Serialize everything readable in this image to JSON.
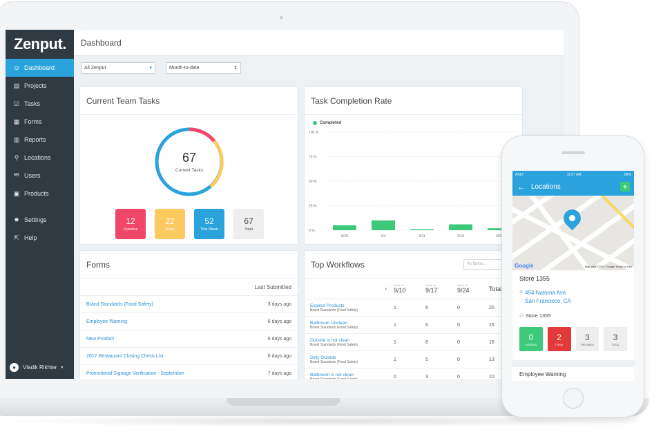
{
  "app": {
    "logo": "Zenput.",
    "page_title": "Dashboard"
  },
  "sidebar": {
    "items": [
      {
        "label": "Dashboard",
        "icon": "dashboard-icon",
        "glyph": "⊙"
      },
      {
        "label": "Projects",
        "icon": "projects-icon",
        "glyph": "▤"
      },
      {
        "label": "Tasks",
        "icon": "tasks-icon",
        "glyph": "☑"
      },
      {
        "label": "Forms",
        "icon": "forms-icon",
        "glyph": "▦"
      },
      {
        "label": "Reports",
        "icon": "reports-icon",
        "glyph": "▥"
      },
      {
        "label": "Locations",
        "icon": "locations-icon",
        "glyph": "⚲"
      },
      {
        "label": "Users",
        "icon": "users-icon",
        "glyph": "ᴿᴿ"
      },
      {
        "label": "Products",
        "icon": "products-icon",
        "glyph": "▣"
      },
      {
        "label": "Settings",
        "icon": "gear-icon",
        "glyph": "✹"
      },
      {
        "label": "Help",
        "icon": "help-icon",
        "glyph": "⇱"
      }
    ],
    "user": {
      "name": "Vladik Rikhter"
    }
  },
  "filters": {
    "scope": "All Zenput",
    "period": "Month-to-date"
  },
  "team_tasks": {
    "title": "Current Team Tasks",
    "total": "67",
    "caption": "Current Tasks",
    "tiles": [
      {
        "value": "12",
        "label": "Overdue",
        "color": "#f0466a"
      },
      {
        "value": "22",
        "label": "Today",
        "color": "#fcca5f"
      },
      {
        "value": "52",
        "label": "This Week",
        "color": "#2aa3dd"
      },
      {
        "value": "67",
        "label": "Total",
        "color": "#eeeeee"
      }
    ]
  },
  "completion": {
    "title": "Task Completion Rate",
    "chart_data": {
      "type": "bar",
      "series": [
        {
          "name": "Completed",
          "values": [
            5,
            10,
            1,
            6,
            2
          ]
        }
      ],
      "categories": [
        "8/28",
        "9/4",
        "9/11",
        "9/18",
        "9/25"
      ],
      "yticks": [
        "100 %",
        "75 %",
        "50 %",
        "25 %",
        "0 %"
      ],
      "ylim": [
        0,
        100
      ],
      "color": "#3dc97a"
    }
  },
  "forms": {
    "title": "Forms",
    "col_header": "Last Submitted",
    "rows": [
      {
        "name": "Brand Standards (Food Safety)",
        "date": "3 days ago"
      },
      {
        "name": "Employee Warning",
        "date": "6 days ago"
      },
      {
        "name": "New Product",
        "date": "6 days ago"
      },
      {
        "name": "2017 Restaurant Closing Check List",
        "date": "6 days ago"
      },
      {
        "name": "Promotional Signage Verification - September",
        "date": "7 days ago"
      }
    ]
  },
  "workflows": {
    "title": "Top Workflows",
    "search_placeholder": "All forms...",
    "week_prefix": "Week of",
    "dates": [
      "9/10",
      "9/17",
      "9/24"
    ],
    "total_label": "Total",
    "rows": [
      {
        "name": "Expired Products",
        "sub": "Brand Standards (Food Safety)",
        "v": [
          "1",
          "6",
          "0"
        ],
        "total": "20"
      },
      {
        "name": "Bathroom Unclean",
        "sub": "Brand Standards (Food Safety)",
        "v": [
          "1",
          "6",
          "0"
        ],
        "total": "16"
      },
      {
        "name": "Outside is not clean",
        "sub": "Brand Standards (Food Safety)",
        "v": [
          "1",
          "6",
          "0"
        ],
        "total": "16"
      },
      {
        "name": "Dirty Outside",
        "sub": "Brand Standards (Food Safety)",
        "v": [
          "1",
          "5",
          "0"
        ],
        "total": "13"
      },
      {
        "name": "Bathroom is not clean",
        "sub": "Brand Standards (Food Safety)",
        "v": [
          "0",
          "3",
          "0"
        ],
        "total": "10"
      }
    ]
  },
  "phone": {
    "status_left": "AT&T",
    "time": "11:07 AM",
    "battery": "89%",
    "title": "Locations",
    "map_data_text": "Map data ©2017 Google   Terms of Use",
    "google": "Google",
    "store_title": "Store 1355",
    "address_line1": "454 Natoma Ave",
    "address_line2": "San Francisco, CA",
    "store_label": "Store 1355",
    "tiles": [
      {
        "value": "0",
        "label": "OVERDUE",
        "color": "#3dc97a"
      },
      {
        "value": "2",
        "label": "TODAY",
        "color": "#e23a3a"
      },
      {
        "value": "3",
        "label": "THIS WEEK",
        "color": "#eeeeee"
      },
      {
        "value": "3",
        "label": "TOTAL",
        "color": "#eeeeee"
      }
    ],
    "list_item": "Employee Warning"
  }
}
